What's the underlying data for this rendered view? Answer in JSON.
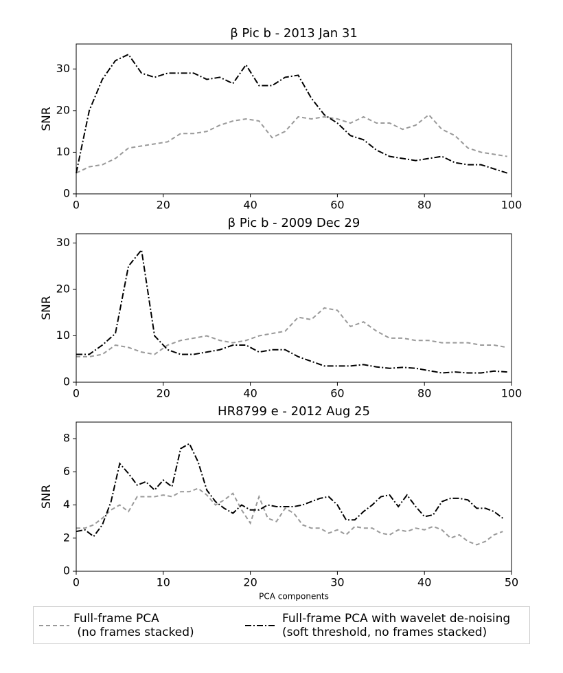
{
  "chart_data": [
    {
      "type": "line",
      "title": "β Pic b - 2013 Jan 31",
      "ylabel": "SNR",
      "x": [
        0,
        3,
        6,
        9,
        12,
        15,
        18,
        21,
        24,
        27,
        30,
        33,
        36,
        39,
        42,
        45,
        48,
        51,
        54,
        57,
        60,
        63,
        66,
        69,
        72,
        75,
        78,
        81,
        84,
        87,
        90,
        93,
        96,
        99
      ],
      "series": [
        {
          "color": "#999999",
          "linestyle": "--",
          "values": [
            5,
            6.5,
            7,
            8.5,
            11,
            11.5,
            12,
            12.5,
            14.5,
            14.5,
            15,
            16.5,
            17.5,
            18,
            17.5,
            13.5,
            15,
            18.5,
            18,
            18.5,
            18,
            17,
            18.5,
            17,
            17,
            15.5,
            16.5,
            19,
            15.5,
            14,
            11,
            10,
            9.5,
            9
          ]
        },
        {
          "color": "#000000",
          "linestyle": "-.",
          "values": [
            5,
            20,
            27.5,
            32,
            33.5,
            29,
            28,
            29,
            29,
            29,
            27.5,
            28,
            26.5,
            31,
            26,
            26,
            28,
            28.5,
            23,
            19,
            17,
            14,
            13,
            10.5,
            9,
            8.5,
            8,
            8.5,
            9,
            7.5,
            7,
            7,
            6,
            5
          ]
        }
      ],
      "xlim": [
        0,
        100
      ],
      "xticks": [
        0,
        20,
        40,
        60,
        80,
        100
      ],
      "ylim": [
        0,
        36
      ],
      "yticks": [
        0,
        10,
        20,
        30
      ]
    },
    {
      "type": "line",
      "title": "β Pic b - 2009 Dec 29",
      "ylabel": "SNR",
      "x": [
        0,
        3,
        6,
        9,
        12,
        15,
        18,
        21,
        24,
        27,
        30,
        33,
        36,
        39,
        42,
        45,
        48,
        51,
        54,
        57,
        60,
        63,
        66,
        69,
        72,
        75,
        78,
        81,
        84,
        87,
        90,
        93,
        96,
        99
      ],
      "series": [
        {
          "color": "#999999",
          "linestyle": "--",
          "values": [
            5.5,
            5.5,
            6,
            8,
            7.5,
            6.5,
            6,
            8,
            9,
            9.5,
            10,
            9,
            8.5,
            9,
            10,
            10.5,
            11,
            14,
            13.5,
            16,
            15.5,
            12,
            13,
            11,
            9.5,
            9.5,
            9,
            9,
            8.5,
            8.5,
            8.5,
            8,
            8,
            7.5
          ]
        },
        {
          "color": "#000000",
          "linestyle": "-.",
          "values": [
            6,
            6,
            8,
            10.5,
            25,
            28.5,
            10,
            7,
            6,
            6,
            6.5,
            7,
            8,
            8,
            6.5,
            7,
            7,
            5.5,
            4.5,
            3.5,
            3.5,
            3.5,
            3.8,
            3.3,
            3,
            3.2,
            3,
            2.5,
            2,
            2.2,
            2,
            2,
            2.4,
            2.2
          ]
        }
      ],
      "xlim": [
        0,
        100
      ],
      "xticks": [
        0,
        20,
        40,
        60,
        80,
        100
      ],
      "ylim": [
        0,
        32
      ],
      "yticks": [
        0,
        10,
        20,
        30
      ]
    },
    {
      "type": "line",
      "title": "HR8799 e - 2012 Aug 25",
      "ylabel": "SNR",
      "xlabel": "PCA components",
      "x": [
        0,
        1,
        2,
        3,
        4,
        5,
        6,
        7,
        8,
        9,
        10,
        11,
        12,
        13,
        14,
        15,
        16,
        17,
        18,
        19,
        20,
        21,
        22,
        23,
        24,
        25,
        26,
        27,
        28,
        29,
        30,
        31,
        32,
        33,
        34,
        35,
        36,
        37,
        38,
        39,
        40,
        41,
        42,
        43,
        44,
        45,
        46,
        47,
        48,
        49
      ],
      "series": [
        {
          "name": "Full-frame PCA\n (no frames stacked)",
          "color": "#999999",
          "linestyle": "--",
          "values": [
            2.6,
            2.6,
            2.8,
            3.2,
            3.7,
            4,
            3.6,
            4.5,
            4.5,
            4.5,
            4.6,
            4.5,
            4.8,
            4.8,
            5,
            4.6,
            4,
            4.3,
            4.7,
            3.7,
            2.9,
            4.5,
            3.2,
            3,
            3.8,
            3.5,
            2.8,
            2.6,
            2.6,
            2.3,
            2.5,
            2.2,
            2.7,
            2.6,
            2.6,
            2.3,
            2.2,
            2.5,
            2.4,
            2.6,
            2.5,
            2.7,
            2.5,
            2,
            2.2,
            1.8,
            1.6,
            1.8,
            2.2,
            2.4
          ]
        },
        {
          "name": "Full-frame PCA with wavelet de-noising\n(soft threshold, no frames stacked)",
          "color": "#000000",
          "linestyle": "-.",
          "values": [
            2.4,
            2.5,
            2.1,
            2.8,
            4.2,
            6.5,
            5.9,
            5.2,
            5.4,
            4.9,
            5.5,
            5.1,
            7.4,
            7.7,
            6.6,
            4.9,
            4.2,
            3.8,
            3.5,
            4,
            3.7,
            3.7,
            4,
            3.9,
            3.9,
            3.9,
            4,
            4.2,
            4.4,
            4.5,
            4,
            3.1,
            3.1,
            3.6,
            4,
            4.5,
            4.6,
            3.9,
            4.6,
            3.9,
            3.3,
            3.4,
            4.2,
            4.4,
            4.4,
            4.3,
            3.8,
            3.8,
            3.6,
            3.2
          ]
        }
      ],
      "xlim": [
        0,
        50
      ],
      "xticks": [
        0,
        10,
        20,
        30,
        40,
        50
      ],
      "ylim": [
        0,
        9
      ],
      "yticks": [
        0,
        2,
        4,
        6,
        8
      ]
    }
  ]
}
